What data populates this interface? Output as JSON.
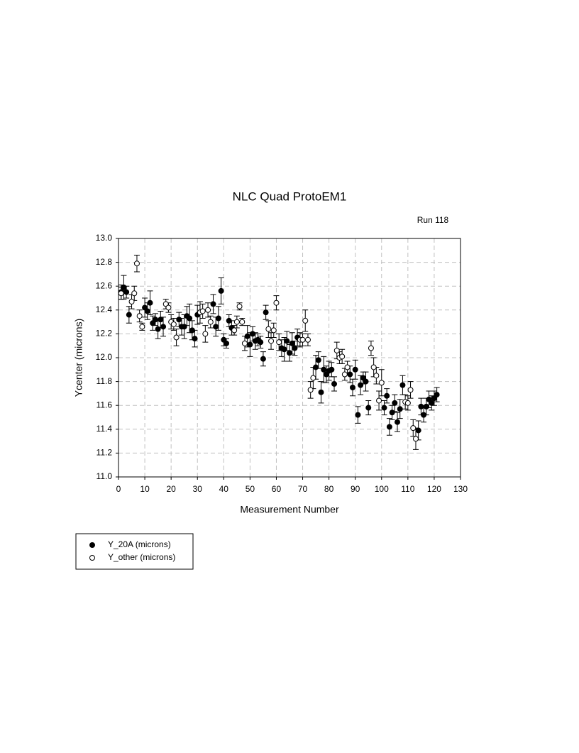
{
  "chart_data": {
    "type": "scatter",
    "title": "NLC Quad ProtoEM1",
    "annotation": "Run 118",
    "x_label": "Measurement Number",
    "y_label": "Ycenter (microns)",
    "xlim": [
      0,
      130
    ],
    "xticks": [
      0,
      10,
      20,
      30,
      40,
      50,
      60,
      70,
      80,
      90,
      100,
      110,
      120,
      130
    ],
    "ylim": [
      11,
      13
    ],
    "yticks": [
      {
        "value": 11,
        "label": "11.0"
      },
      11.2,
      11.4,
      11.6,
      11.8,
      {
        "value": 12,
        "label": "12.0"
      },
      12.2,
      12.4,
      12.6,
      12.8,
      {
        "value": 13,
        "label": "13.0"
      }
    ],
    "grid": true,
    "series": [
      {
        "name": "Y_20A (microns)",
        "color": "#000000",
        "fill": "#000000",
        "x": [
          1,
          2,
          3,
          4,
          10,
          11,
          12,
          13,
          14,
          15,
          16,
          17,
          23,
          24,
          25,
          26,
          27,
          28,
          29,
          30,
          36,
          37,
          38,
          39,
          40,
          41,
          42,
          43,
          49,
          50,
          51,
          52,
          53,
          54,
          55,
          56,
          62,
          63,
          64,
          65,
          66,
          67,
          68,
          75,
          76,
          77,
          78,
          79,
          80,
          81,
          82,
          88,
          89,
          90,
          91,
          92,
          93,
          94,
          95,
          101,
          102,
          103,
          104,
          105,
          106,
          107,
          108,
          114,
          115,
          116,
          117,
          118,
          119,
          120,
          121
        ],
        "values": [
          12.55,
          12.59,
          12.55,
          12.36,
          12.42,
          12.39,
          12.46,
          12.29,
          12.32,
          12.24,
          12.32,
          12.26,
          12.32,
          12.26,
          12.26,
          12.35,
          12.33,
          12.23,
          12.16,
          12.36,
          12.45,
          12.26,
          12.33,
          12.56,
          12.15,
          12.12,
          12.31,
          12.25,
          12.18,
          12.11,
          12.2,
          12.14,
          12.15,
          12.13,
          11.99,
          12.38,
          12.08,
          12.07,
          12.14,
          12.04,
          12.12,
          12.08,
          12.17,
          11.92,
          11.98,
          11.71,
          11.9,
          11.86,
          11.89,
          11.9,
          11.78,
          11.86,
          11.75,
          11.9,
          11.52,
          11.77,
          11.83,
          11.8,
          11.58,
          11.58,
          11.68,
          11.42,
          11.54,
          11.62,
          11.46,
          11.57,
          11.77,
          11.39,
          11.59,
          11.52,
          11.59,
          11.65,
          11.62,
          11.66,
          11.69
        ],
        "errors": [
          0.06,
          0.1,
          0.05,
          0.07,
          0.08,
          0.07,
          0.1,
          0.06,
          0.05,
          0.08,
          0.07,
          0.08,
          0.06,
          0.07,
          0.1,
          0.08,
          0.12,
          0.08,
          0.07,
          0.08,
          0.08,
          0.08,
          0.1,
          0.11,
          0.05,
          0.04,
          0.05,
          0.06,
          0.09,
          0.1,
          0.06,
          0.07,
          0.05,
          0.05,
          0.06,
          0.06,
          0.07,
          0.1,
          0.08,
          0.07,
          0.09,
          0.06,
          0.07,
          0.1,
          0.07,
          0.09,
          0.11,
          0.07,
          0.08,
          0.06,
          0.06,
          0.07,
          0.07,
          0.08,
          0.07,
          0.08,
          0.05,
          0.08,
          0.06,
          0.06,
          0.06,
          0.07,
          0.06,
          0.07,
          0.08,
          0.08,
          0.08,
          0.08,
          0.07,
          0.06,
          0.07,
          0.07,
          0.06,
          0.06,
          0.06
        ]
      },
      {
        "name": "Y_other (microns)",
        "color": "#000000",
        "fill": "#ffffff",
        "x": [
          1,
          5,
          6,
          7,
          8,
          9,
          18,
          19,
          20,
          21,
          22,
          31,
          32,
          33,
          34,
          35,
          44,
          45,
          46,
          47,
          48,
          57,
          58,
          59,
          60,
          61,
          69,
          70,
          71,
          72,
          73,
          74,
          83,
          84,
          85,
          86,
          87,
          96,
          97,
          98,
          99,
          100,
          109,
          110,
          111,
          112,
          113
        ],
        "values": [
          12.54,
          12.47,
          12.54,
          12.79,
          12.35,
          12.26,
          12.45,
          12.42,
          12.3,
          12.28,
          12.17,
          12.38,
          12.39,
          12.2,
          12.4,
          12.3,
          12.23,
          12.3,
          12.43,
          12.3,
          12.12,
          12.24,
          12.14,
          12.23,
          12.46,
          12.13,
          12.15,
          12.15,
          12.31,
          12.15,
          11.73,
          11.83,
          12.06,
          12,
          12.01,
          11.86,
          11.92,
          12.08,
          11.92,
          11.85,
          11.64,
          11.79,
          11.63,
          11.62,
          11.73,
          11.41,
          11.32
        ],
        "errors": [
          0.05,
          0.06,
          0.06,
          0.07,
          0.05,
          0.03,
          0.04,
          0.04,
          0.06,
          0.05,
          0.07,
          0.09,
          0.06,
          0.07,
          0.06,
          0.05,
          0.04,
          0.05,
          0.03,
          0.03,
          0.06,
          0.07,
          0.07,
          0.06,
          0.06,
          0.07,
          0.06,
          0.05,
          0.09,
          0.05,
          0.07,
          0.09,
          0.07,
          0.05,
          0.06,
          0.05,
          0.05,
          0.06,
          0.08,
          0.07,
          0.08,
          0.11,
          0.06,
          0.06,
          0.07,
          0.07,
          0.09
        ]
      }
    ]
  }
}
